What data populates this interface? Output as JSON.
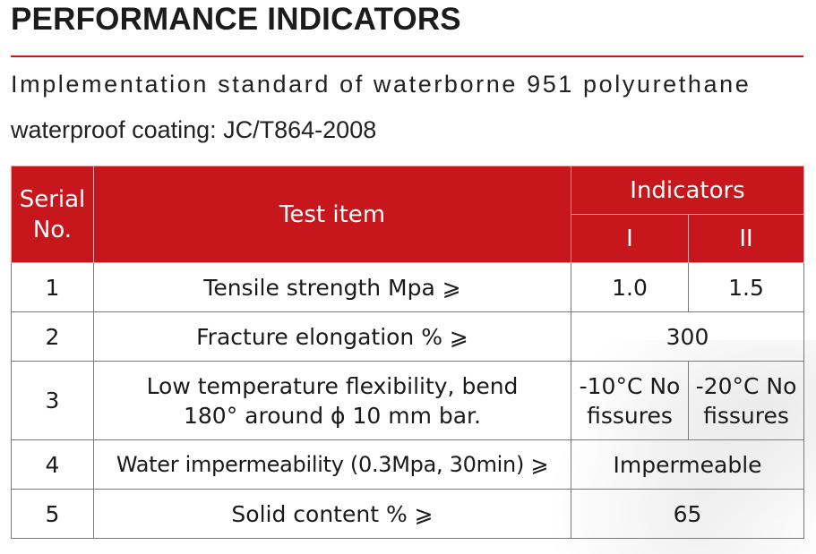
{
  "header": {
    "title": "PERFORMANCE INDICATORS",
    "intro_line1": "Implementation standard of waterborne 951 polyurethane",
    "intro_line2": "waterproof coating: JC/T864-2008"
  },
  "table": {
    "headers": {
      "serial_line1": "Serial",
      "serial_line2": "No.",
      "test_item": "Test item",
      "indicators": "Indicators",
      "grade_1": "I",
      "grade_2": "II"
    },
    "rows": [
      {
        "no": "1",
        "item": "Tensile strength Mpa ⩾",
        "v1": "1.0",
        "v2": "1.5"
      },
      {
        "no": "2",
        "item": "Fracture elongation % ⩾",
        "merged": "300"
      },
      {
        "no": "3",
        "item_line1": "Low temperature flexibility, bend",
        "item_line2": "180° around ϕ 10 mm bar.",
        "v1_line1": "-10°C No",
        "v1_line2": "fissures",
        "v2_line1": "-20°C No",
        "v2_line2": "fissures"
      },
      {
        "no": "4",
        "item": "Water impermeability (0.3Mpa, 30min) ⩾",
        "merged": "Impermeable"
      },
      {
        "no": "5",
        "item": "Solid content % ⩾",
        "merged": "65"
      }
    ]
  },
  "colors": {
    "accent": "#c8161d",
    "header_text": "#ffffff",
    "border": "#7a7a7a"
  }
}
